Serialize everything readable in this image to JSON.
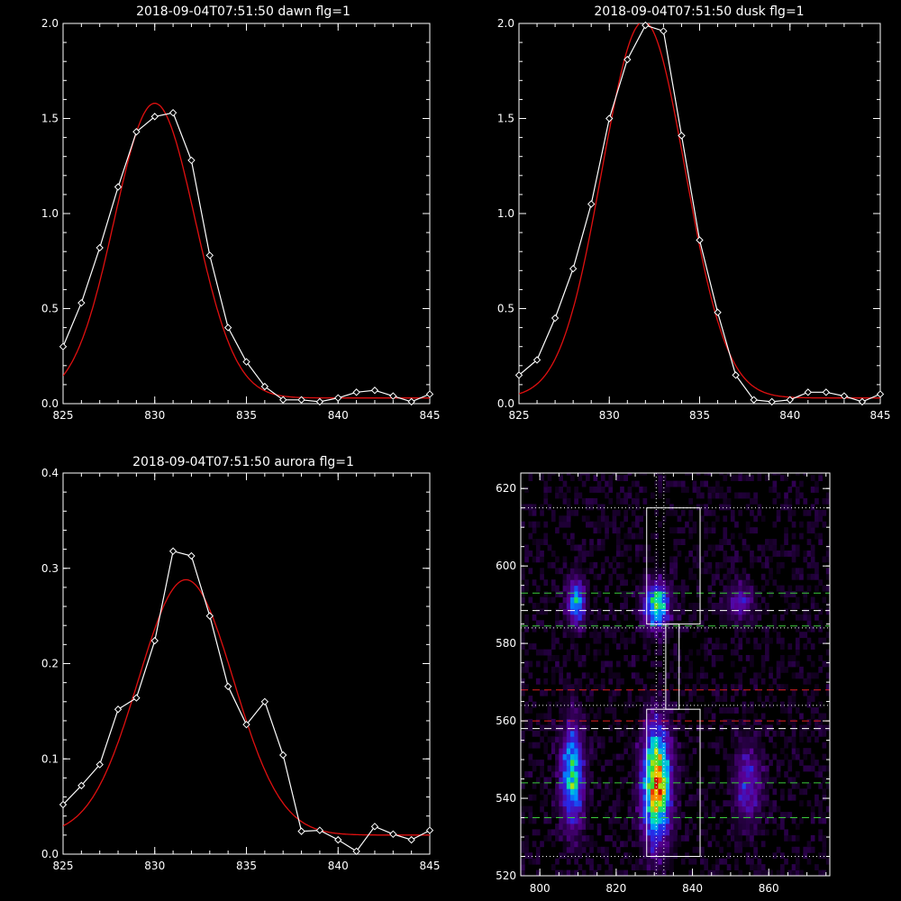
{
  "colors": {
    "background": "#000000",
    "axes": "#ffffff",
    "observed": "#ffffff",
    "fit": "#e01010",
    "green": "#3ccc3c",
    "red": "#e02020",
    "white": "#ffffff"
  },
  "chart_data": [
    {
      "type": "line",
      "title": "2018-09-04T07:51:50 dawn flg=1",
      "xlim": [
        825,
        845
      ],
      "ylim": [
        0,
        2
      ],
      "xticks": [
        "825",
        "830",
        "835",
        "840",
        "845"
      ],
      "yticks": [
        "0.0",
        "0.5",
        "1.0",
        "1.5",
        "2.0"
      ],
      "series": [
        {
          "x": [
            825,
            826,
            827,
            828,
            829,
            830,
            831,
            832,
            833,
            834,
            835,
            836,
            837,
            838,
            839,
            840,
            841,
            842,
            843,
            844,
            845
          ],
          "y": [
            0.3,
            0.53,
            0.82,
            1.14,
            1.43,
            1.51,
            1.53,
            1.28,
            0.78,
            0.4,
            0.22,
            0.09,
            0.02,
            0.02,
            0.01,
            0.03,
            0.06,
            0.07,
            0.04,
            0.01,
            0.05
          ],
          "marker": "diamond",
          "color": "observed"
        },
        {
          "gaussian": {
            "amp": 1.55,
            "center": 830.0,
            "sigma": 2.2,
            "offset": 0.03
          },
          "color": "fit"
        }
      ]
    },
    {
      "type": "line",
      "title": "2018-09-04T07:51:50 dusk flg=1",
      "xlim": [
        825,
        845
      ],
      "ylim": [
        0,
        2
      ],
      "xticks": [
        "825",
        "830",
        "835",
        "840",
        "845"
      ],
      "yticks": [
        "0.0",
        "0.5",
        "1.0",
        "1.5",
        "2.0"
      ],
      "series": [
        {
          "x": [
            825,
            826,
            827,
            828,
            829,
            830,
            831,
            832,
            833,
            834,
            835,
            836,
            837,
            838,
            839,
            840,
            841,
            842,
            843,
            844,
            845
          ],
          "y": [
            0.15,
            0.23,
            0.45,
            0.71,
            1.05,
            1.5,
            1.81,
            1.99,
            1.96,
            1.41,
            0.86,
            0.48,
            0.15,
            0.02,
            0.01,
            0.02,
            0.06,
            0.06,
            0.04,
            0.01,
            0.05
          ],
          "marker": "diamond",
          "color": "observed"
        },
        {
          "gaussian": {
            "amp": 1.98,
            "center": 831.9,
            "sigma": 2.3,
            "offset": 0.03
          },
          "color": "fit"
        }
      ]
    },
    {
      "type": "line",
      "title": "2018-09-04T07:51:50 aurora flg=1",
      "xlim": [
        825,
        845
      ],
      "ylim": [
        0,
        0.4
      ],
      "xticks": [
        "825",
        "830",
        "835",
        "840",
        "845"
      ],
      "yticks": [
        "0.0",
        "0.1",
        "0.2",
        "0.3",
        "0.4"
      ],
      "series": [
        {
          "x": [
            825,
            826,
            827,
            828,
            829,
            830,
            831,
            832,
            833,
            834,
            835,
            836,
            837,
            838,
            839,
            840,
            841,
            842,
            843,
            844,
            845
          ],
          "y": [
            0.052,
            0.072,
            0.094,
            0.152,
            0.164,
            0.224,
            0.318,
            0.313,
            0.25,
            0.176,
            0.136,
            0.16,
            0.104,
            0.024,
            0.025,
            0.015,
            0.003,
            0.029,
            0.021,
            0.015,
            0.025
          ],
          "marker": "diamond",
          "color": "observed"
        },
        {
          "gaussian": {
            "amp": 0.268,
            "center": 831.7,
            "sigma": 2.6,
            "offset": 0.02
          },
          "color": "fit"
        }
      ]
    },
    {
      "type": "heatmap",
      "xlim": [
        795,
        876
      ],
      "ylim": [
        520,
        624
      ],
      "xticks": [
        {
          "v": 800,
          "label": "800"
        },
        {
          "v": 820,
          "label": "820"
        },
        {
          "v": 840,
          "label": "840"
        },
        {
          "v": 860,
          "label": "860"
        }
      ],
      "yticks": [
        {
          "v": 520,
          "label": "520"
        },
        {
          "v": 540,
          "label": "540"
        },
        {
          "v": 560,
          "label": "560"
        },
        {
          "v": 580,
          "label": "580"
        },
        {
          "v": 600,
          "label": "600"
        },
        {
          "v": 620,
          "label": "620"
        }
      ],
      "blobs": [
        {
          "x": 809,
          "y": 590,
          "sx": 1.6,
          "sy": 4.0,
          "amp": 0.55
        },
        {
          "x": 830,
          "y": 589,
          "sx": 2.2,
          "sy": 4.0,
          "amp": 0.7
        },
        {
          "x": 852,
          "y": 590,
          "sx": 2.5,
          "sy": 3.5,
          "amp": 0.25
        },
        {
          "x": 808,
          "y": 545,
          "sx": 2.0,
          "sy": 9.0,
          "amp": 0.6
        },
        {
          "x": 830,
          "y": 543,
          "sx": 2.5,
          "sy": 10.0,
          "amp": 0.9
        },
        {
          "x": 854,
          "y": 543,
          "sx": 2.5,
          "sy": 7.0,
          "amp": 0.3
        }
      ],
      "hlines": [
        {
          "y": 615,
          "color": "white",
          "style": "dotted"
        },
        {
          "y": 593,
          "color": "green",
          "style": "dashed"
        },
        {
          "y": 588.5,
          "color": "white",
          "style": "dashed"
        },
        {
          "y": 584.5,
          "color": "green",
          "style": "dashed"
        },
        {
          "y": 584,
          "color": "white",
          "style": "dotted"
        },
        {
          "y": 568,
          "color": "red",
          "style": "dashed"
        },
        {
          "y": 564,
          "color": "white",
          "style": "dotted"
        },
        {
          "y": 560,
          "color": "red",
          "style": "dashed"
        },
        {
          "y": 558,
          "color": "white",
          "style": "dashed"
        },
        {
          "y": 544,
          "color": "green",
          "style": "dashed"
        },
        {
          "y": 535,
          "color": "green",
          "style": "dashed"
        },
        {
          "y": 525,
          "color": "white",
          "style": "dotted"
        }
      ],
      "vlines": [
        {
          "x": 830.5,
          "color": "white",
          "style": "dotted"
        },
        {
          "x": 832.5,
          "color": "white",
          "style": "dotted"
        }
      ],
      "boxes": [
        {
          "x0": 828,
          "x1": 842,
          "y0": 585,
          "y1": 615
        },
        {
          "x0": 833,
          "x1": 836.5,
          "y0": 563,
          "y1": 585
        },
        {
          "x0": 828,
          "x1": 842,
          "y0": 525,
          "y1": 563
        }
      ]
    }
  ]
}
